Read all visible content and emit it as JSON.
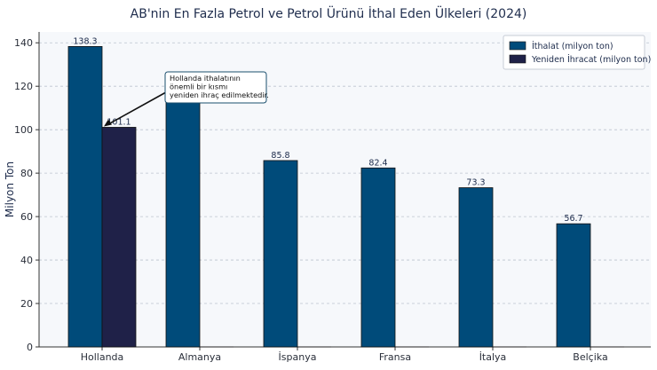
{
  "chart_data": {
    "type": "bar",
    "title": "AB'nin En Fazla Petrol ve Petrol Ürünü İthal Eden Ülkeleri (2024)",
    "xlabel": "",
    "ylabel": "Milyon Ton",
    "ylim": [
      0,
      145
    ],
    "yticks": [
      0,
      20,
      40,
      60,
      80,
      100,
      120,
      140
    ],
    "grid": true,
    "legend_position": "top-right",
    "categories": [
      "Hollanda",
      "Almanya",
      "İspanya",
      "Fransa",
      "İtalya",
      "Belçika"
    ],
    "series": [
      {
        "name": "İthalat (milyon ton)",
        "color": "#004b7a",
        "values": [
          138.3,
          120,
          85.8,
          82.4,
          73.3,
          56.7
        ],
        "labels": [
          "138.3",
          "",
          "85.8",
          "82.4",
          "73.3",
          "56.7"
        ]
      },
      {
        "name": "Yeniden İhracat (milyon ton)",
        "color": "#1f2148",
        "values": [
          101.1,
          0,
          0,
          0,
          0,
          0
        ],
        "labels": [
          "101.1",
          "",
          "",
          "",
          "",
          ""
        ]
      }
    ],
    "annotation": {
      "text": [
        "Hollanda ithalatının",
        "önemli bir kısmı",
        "yeniden ihraç edilmektedir."
      ],
      "target_category": "Hollanda",
      "target_value": 101.1
    }
  }
}
